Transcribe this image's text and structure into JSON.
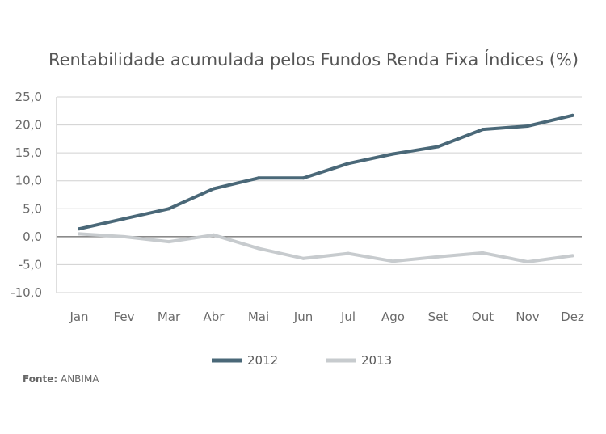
{
  "chart_data": {
    "type": "line",
    "title": "Rentabilidade acumulada pelos Fundos Renda Fixa Índices (%)",
    "categories": [
      "Jan",
      "Fev",
      "Mar",
      "Abr",
      "Mai",
      "Jun",
      "Jul",
      "Ago",
      "Set",
      "Out",
      "Nov",
      "Dez"
    ],
    "series": [
      {
        "name": "2012",
        "color": "#4a6878",
        "values": [
          1.4,
          3.2,
          5.0,
          8.6,
          10.5,
          10.5,
          13.1,
          14.8,
          16.1,
          19.2,
          19.8,
          21.7
        ]
      },
      {
        "name": "2013",
        "color": "#c7cbce",
        "values": [
          0.5,
          0.0,
          -0.9,
          0.3,
          -2.1,
          -3.9,
          -3.0,
          -4.4,
          -3.6,
          -2.9,
          -4.5,
          -3.4
        ]
      }
    ],
    "ylim": [
      -10,
      25
    ],
    "yticks": [
      {
        "value": 25,
        "label": "25,0"
      },
      {
        "value": 20,
        "label": "20,0"
      },
      {
        "value": 15,
        "label": "15,0"
      },
      {
        "value": 10,
        "label": "10,0"
      },
      {
        "value": 5,
        "label": "5,0"
      },
      {
        "value": 0,
        "label": "0,0"
      },
      {
        "value": -5,
        "label": "-5,0"
      },
      {
        "value": -10,
        "label": "-10,0"
      }
    ],
    "grid": true,
    "legend_position": "bottom-center"
  },
  "source": {
    "label": "Fonte:",
    "value": "ANBIMA"
  }
}
